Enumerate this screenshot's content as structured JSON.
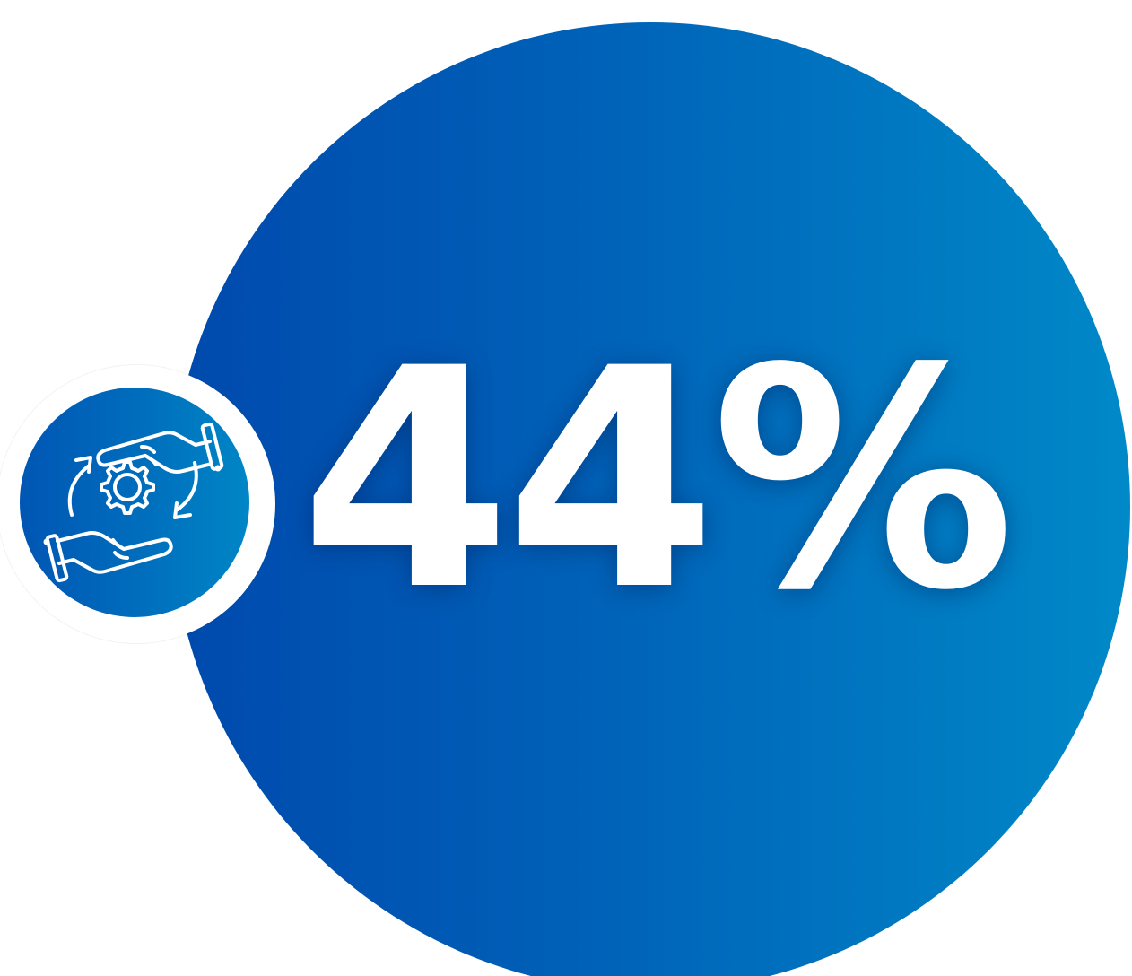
{
  "stat": {
    "value": "44%"
  },
  "icon": {
    "name": "hands-gear-cycle-icon"
  },
  "colors": {
    "circle_start": "#0049ad",
    "circle_end": "#0089c8",
    "text": "#ffffff"
  }
}
